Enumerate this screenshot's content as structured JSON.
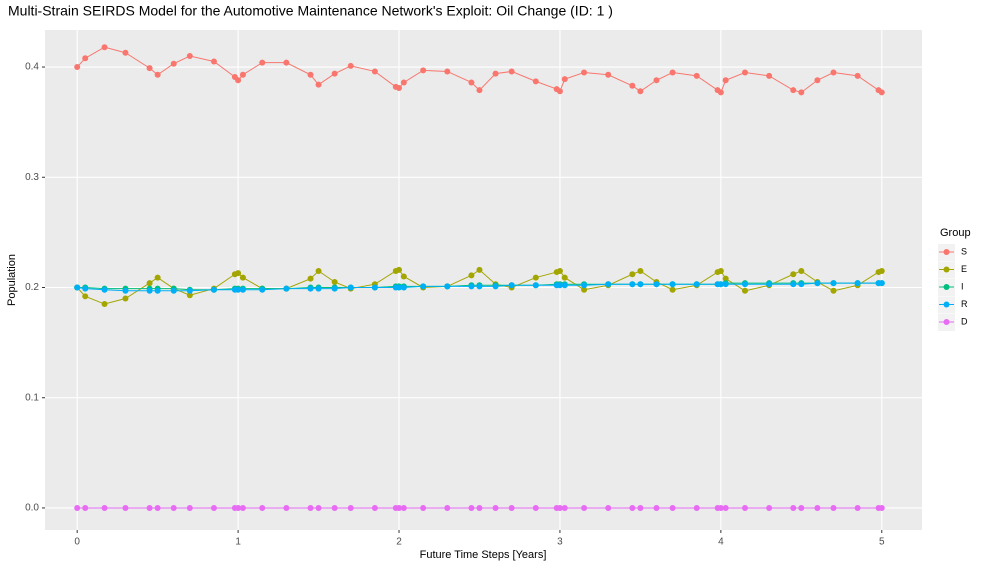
{
  "chart_data": {
    "type": "line",
    "title": "Multi-Strain SEIRDS Model for the Automotive Maintenance Network's Exploit: Oil Change (ID: 1 )",
    "xlabel": "Future Time Steps [Years]",
    "ylabel": "Population",
    "legend_title": "Group",
    "x": [
      0,
      0.05,
      0.17,
      0.3,
      0.45,
      0.5,
      0.6,
      0.7,
      0.85,
      0.98,
      1.0,
      1.03,
      1.15,
      1.3,
      1.45,
      1.5,
      1.6,
      1.7,
      1.85,
      1.98,
      2.0,
      2.03,
      2.15,
      2.3,
      2.45,
      2.5,
      2.6,
      2.7,
      2.85,
      2.98,
      3.0,
      3.03,
      3.15,
      3.3,
      3.45,
      3.5,
      3.6,
      3.7,
      3.85,
      3.98,
      4.0,
      4.03,
      4.15,
      4.3,
      4.45,
      4.5,
      4.6,
      4.7,
      4.85,
      4.98,
      5.0
    ],
    "series": [
      {
        "name": "S",
        "color": "#F8766D",
        "values": [
          0.4,
          0.408,
          0.418,
          0.413,
          0.399,
          0.393,
          0.403,
          0.41,
          0.405,
          0.391,
          0.388,
          0.393,
          0.404,
          0.404,
          0.393,
          0.384,
          0.394,
          0.401,
          0.396,
          0.382,
          0.381,
          0.386,
          0.397,
          0.396,
          0.386,
          0.379,
          0.394,
          0.396,
          0.387,
          0.38,
          0.378,
          0.389,
          0.395,
          0.393,
          0.383,
          0.378,
          0.388,
          0.395,
          0.392,
          0.379,
          0.377,
          0.388,
          0.395,
          0.392,
          0.379,
          0.377,
          0.388,
          0.395,
          0.392,
          0.379,
          0.377
        ]
      },
      {
        "name": "E",
        "color": "#A3A500",
        "values": [
          0.2,
          0.192,
          0.185,
          0.19,
          0.204,
          0.209,
          0.199,
          0.193,
          0.199,
          0.212,
          0.213,
          0.209,
          0.199,
          0.199,
          0.208,
          0.215,
          0.205,
          0.199,
          0.203,
          0.215,
          0.216,
          0.21,
          0.2,
          0.201,
          0.211,
          0.216,
          0.203,
          0.2,
          0.209,
          0.214,
          0.215,
          0.209,
          0.198,
          0.202,
          0.212,
          0.215,
          0.205,
          0.198,
          0.202,
          0.214,
          0.215,
          0.208,
          0.197,
          0.202,
          0.212,
          0.215,
          0.205,
          0.197,
          0.202,
          0.214,
          0.215
        ]
      },
      {
        "name": "I",
        "color": "#00BF7D",
        "values": [
          0.2,
          0.2,
          0.199,
          0.199,
          0.199,
          0.199,
          0.199,
          0.198,
          0.198,
          0.199,
          0.199,
          0.199,
          0.199,
          0.199,
          0.2,
          0.2,
          0.2,
          0.2,
          0.2,
          0.201,
          0.201,
          0.201,
          0.201,
          0.201,
          0.202,
          0.202,
          0.202,
          0.202,
          0.202,
          0.203,
          0.203,
          0.203,
          0.203,
          0.203,
          0.203,
          0.203,
          0.203,
          0.203,
          0.203,
          0.203,
          0.203,
          0.204,
          0.204,
          0.204,
          0.204,
          0.204,
          0.204,
          0.204,
          0.204,
          0.204,
          0.204
        ]
      },
      {
        "name": "R",
        "color": "#00B0F6",
        "values": [
          0.2,
          0.199,
          0.198,
          0.197,
          0.197,
          0.197,
          0.197,
          0.197,
          0.198,
          0.198,
          0.198,
          0.198,
          0.198,
          0.199,
          0.199,
          0.199,
          0.199,
          0.2,
          0.2,
          0.2,
          0.2,
          0.2,
          0.201,
          0.201,
          0.201,
          0.201,
          0.201,
          0.202,
          0.202,
          0.202,
          0.202,
          0.202,
          0.202,
          0.203,
          0.203,
          0.203,
          0.203,
          0.203,
          0.203,
          0.203,
          0.203,
          0.203,
          0.203,
          0.203,
          0.203,
          0.203,
          0.204,
          0.204,
          0.204,
          0.204,
          0.204
        ]
      },
      {
        "name": "D",
        "color": "#E76BF3",
        "values": [
          0,
          0,
          0,
          0,
          0,
          0,
          0,
          0,
          0,
          0,
          0,
          0,
          0,
          0,
          0,
          0,
          0,
          0,
          0,
          0,
          0,
          0,
          0,
          0,
          0,
          0,
          0,
          0,
          0,
          0,
          0,
          0,
          0,
          0,
          0,
          0,
          0,
          0,
          0,
          0,
          0,
          0,
          0,
          0,
          0,
          0,
          0,
          0,
          0,
          0,
          0
        ]
      }
    ],
    "xlim": [
      -0.2,
      5.25
    ],
    "xticks": [
      0,
      1,
      2,
      3,
      4,
      5
    ],
    "ylim": [
      -0.02,
      0.4336
    ],
    "yticks": [
      {
        "value": 0,
        "label": "0.0"
      },
      0.1,
      0.2,
      0.3,
      0.4
    ],
    "grid": true
  }
}
